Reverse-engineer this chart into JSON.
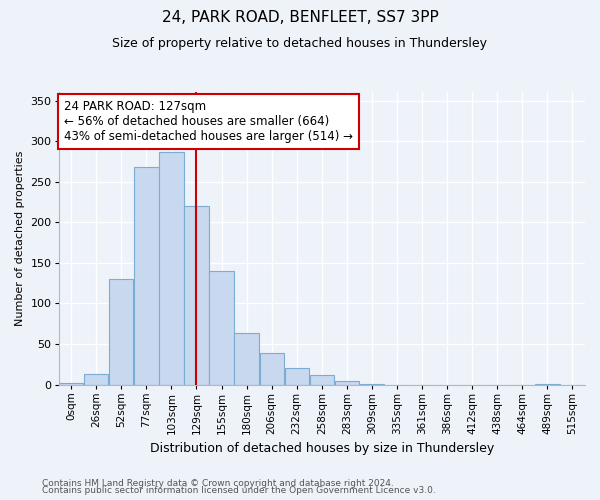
{
  "title": "24, PARK ROAD, BENFLEET, SS7 3PP",
  "subtitle": "Size of property relative to detached houses in Thundersley",
  "xlabel": "Distribution of detached houses by size in Thundersley",
  "ylabel": "Number of detached properties",
  "bar_color": "#c8d8ee",
  "bar_edge_color": "#7aadd4",
  "categories": [
    "0sqm",
    "26sqm",
    "52sqm",
    "77sqm",
    "103sqm",
    "129sqm",
    "155sqm",
    "180sqm",
    "206sqm",
    "232sqm",
    "258sqm",
    "283sqm",
    "309sqm",
    "335sqm",
    "361sqm",
    "386sqm",
    "412sqm",
    "438sqm",
    "464sqm",
    "489sqm",
    "515sqm"
  ],
  "values": [
    2,
    13,
    130,
    268,
    287,
    220,
    140,
    63,
    39,
    21,
    12,
    5,
    1,
    0,
    0,
    0,
    0,
    0,
    0,
    1,
    0
  ],
  "ylim": [
    0,
    360
  ],
  "yticks": [
    0,
    50,
    100,
    150,
    200,
    250,
    300,
    350
  ],
  "vline_index": 5,
  "vline_color": "#cc0000",
  "annotation_line1": "24 PARK ROAD: 127sqm",
  "annotation_line2": "← 56% of detached houses are smaller (664)",
  "annotation_line3": "43% of semi-detached houses are larger (514) →",
  "annotation_box_color": "#ffffff",
  "annotation_box_edge": "#cc0000",
  "footer1": "Contains HM Land Registry data © Crown copyright and database right 2024.",
  "footer2": "Contains public sector information licensed under the Open Government Licence v3.0.",
  "bg_color": "#eef2f9",
  "plot_bg_color": "#eef2f9",
  "grid_color": "#ffffff",
  "title_fontsize": 11,
  "subtitle_fontsize": 9,
  "ylabel_fontsize": 8,
  "xlabel_fontsize": 9,
  "tick_fontsize": 8,
  "xtick_fontsize": 7.5,
  "footer_fontsize": 6.5,
  "annotation_fontsize": 8.5
}
